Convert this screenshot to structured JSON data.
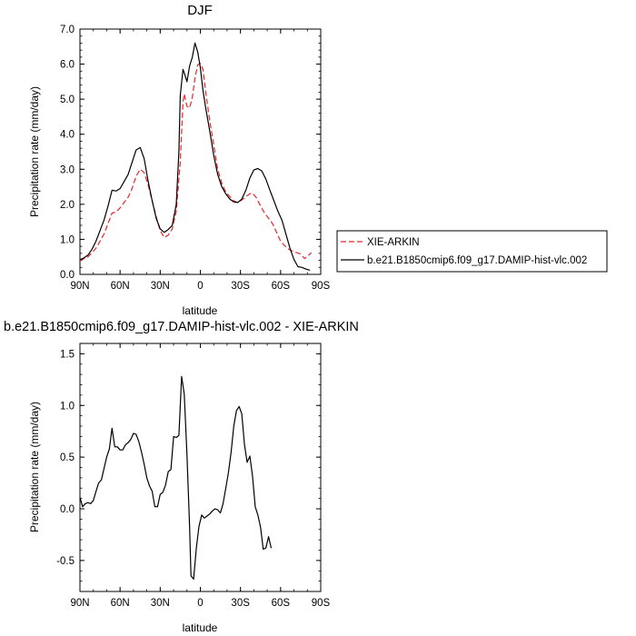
{
  "chart_data": [
    {
      "type": "line",
      "title": "DJF",
      "xlabel": "latitude",
      "ylabel": "Precipitation rate (mm/day)",
      "xlim": [
        90,
        -90
      ],
      "ylim": [
        0,
        7
      ],
      "x_ticks": [
        90,
        60,
        30,
        0,
        -30,
        -60,
        -90
      ],
      "x_tick_labels": [
        "90N",
        "60N",
        "30N",
        "0",
        "30S",
        "60S",
        "90S"
      ],
      "y_ticks": [
        0,
        1,
        2,
        3,
        4,
        5,
        6,
        7
      ],
      "y_tick_labels": [
        "0.0",
        "1.0",
        "2.0",
        "3.0",
        "4.0",
        "5.0",
        "6.0",
        "7.0"
      ],
      "legend_position": "right",
      "series": [
        {
          "name": "XIE-ARKIN",
          "color": "#e8262b",
          "dash": "dashed",
          "points": [
            [
              90,
              0.38
            ],
            [
              87,
              0.45
            ],
            [
              84,
              0.5
            ],
            [
              81,
              0.62
            ],
            [
              78,
              0.75
            ],
            [
              75,
              0.95
            ],
            [
              72,
              1.15
            ],
            [
              69,
              1.45
            ],
            [
              66,
              1.75
            ],
            [
              63,
              1.78
            ],
            [
              60,
              1.9
            ],
            [
              57,
              2.05
            ],
            [
              54,
              2.2
            ],
            [
              51,
              2.45
            ],
            [
              48,
              2.8
            ],
            [
              45,
              3.0
            ],
            [
              42,
              2.9
            ],
            [
              39,
              2.55
            ],
            [
              36,
              2.1
            ],
            [
              33,
              1.65
            ],
            [
              30,
              1.25
            ],
            [
              27,
              1.05
            ],
            [
              24,
              1.12
            ],
            [
              21,
              1.3
            ],
            [
              18,
              1.8
            ],
            [
              15,
              3.2
            ],
            [
              13,
              4.9
            ],
            [
              12,
              5.15
            ],
            [
              10,
              4.8
            ],
            [
              8,
              4.75
            ],
            [
              6,
              5.05
            ],
            [
              4,
              5.6
            ],
            [
              2,
              5.98
            ],
            [
              0,
              6.02
            ],
            [
              -2,
              5.85
            ],
            [
              -4,
              5.2
            ],
            [
              -7,
              4.4
            ],
            [
              -10,
              3.7
            ],
            [
              -13,
              3.0
            ],
            [
              -16,
              2.6
            ],
            [
              -19,
              2.35
            ],
            [
              -22,
              2.22
            ],
            [
              -25,
              2.1
            ],
            [
              -28,
              2.05
            ],
            [
              -31,
              2.12
            ],
            [
              -34,
              2.22
            ],
            [
              -37,
              2.3
            ],
            [
              -39,
              2.32
            ],
            [
              -42,
              2.18
            ],
            [
              -45,
              1.95
            ],
            [
              -48,
              1.75
            ],
            [
              -51,
              1.6
            ],
            [
              -54,
              1.45
            ],
            [
              -57,
              1.2
            ],
            [
              -60,
              0.95
            ],
            [
              -63,
              0.82
            ],
            [
              -66,
              0.72
            ],
            [
              -69,
              0.66
            ],
            [
              -72,
              0.62
            ],
            [
              -75,
              0.58
            ],
            [
              -78,
              0.45
            ],
            [
              -81,
              0.55
            ],
            [
              -83,
              0.62
            ]
          ]
        },
        {
          "name": "b.e21.B1850cmip6.f09_g17.DAMIP-hist-vlc.002",
          "color": "#000000",
          "dash": "solid",
          "points": [
            [
              90,
              0.42
            ],
            [
              87,
              0.47
            ],
            [
              84,
              0.55
            ],
            [
              81,
              0.72
            ],
            [
              78,
              0.95
            ],
            [
              75,
              1.25
            ],
            [
              72,
              1.55
            ],
            [
              69,
              1.95
            ],
            [
              66,
              2.4
            ],
            [
              63,
              2.38
            ],
            [
              60,
              2.45
            ],
            [
              57,
              2.65
            ],
            [
              54,
              2.85
            ],
            [
              51,
              3.2
            ],
            [
              48,
              3.55
            ],
            [
              45,
              3.62
            ],
            [
              42,
              3.3
            ],
            [
              39,
              2.65
            ],
            [
              36,
              2.1
            ],
            [
              33,
              1.6
            ],
            [
              30,
              1.3
            ],
            [
              27,
              1.2
            ],
            [
              24,
              1.28
            ],
            [
              21,
              1.4
            ],
            [
              18,
              2.0
            ],
            [
              16,
              3.5
            ],
            [
              15,
              5.1
            ],
            [
              13,
              5.85
            ],
            [
              12,
              5.75
            ],
            [
              10,
              5.5
            ],
            [
              8,
              5.95
            ],
            [
              6,
              6.2
            ],
            [
              4,
              6.6
            ],
            [
              2,
              6.35
            ],
            [
              0,
              5.9
            ],
            [
              -2,
              5.25
            ],
            [
              -4,
              4.75
            ],
            [
              -7,
              4.1
            ],
            [
              -10,
              3.4
            ],
            [
              -13,
              2.85
            ],
            [
              -16,
              2.5
            ],
            [
              -19,
              2.3
            ],
            [
              -22,
              2.15
            ],
            [
              -25,
              2.07
            ],
            [
              -28,
              2.05
            ],
            [
              -31,
              2.15
            ],
            [
              -34,
              2.4
            ],
            [
              -37,
              2.75
            ],
            [
              -40,
              2.98
            ],
            [
              -43,
              3.02
            ],
            [
              -46,
              2.95
            ],
            [
              -49,
              2.72
            ],
            [
              -52,
              2.4
            ],
            [
              -55,
              2.1
            ],
            [
              -58,
              1.8
            ],
            [
              -61,
              1.55
            ],
            [
              -64,
              1.15
            ],
            [
              -67,
              0.75
            ],
            [
              -70,
              0.42
            ],
            [
              -73,
              0.22
            ],
            [
              -76,
              0.2
            ],
            [
              -79,
              0.15
            ],
            [
              -82,
              0.12
            ]
          ]
        }
      ]
    },
    {
      "type": "line",
      "title": "b.e21.B1850cmip6.f09_g17.DAMIP-hist-vlc.002 - XIE-ARKIN",
      "xlabel": "latitude",
      "ylabel": "Precipitation rate (mm/day)",
      "xlim": [
        90,
        -90
      ],
      "ylim": [
        -0.8,
        1.6
      ],
      "x_ticks": [
        90,
        60,
        30,
        0,
        -30,
        -60,
        -90
      ],
      "x_tick_labels": [
        "90N",
        "60N",
        "30N",
        "0",
        "30S",
        "60S",
        "90S"
      ],
      "y_ticks": [
        -0.5,
        0,
        0.5,
        1.0,
        1.5
      ],
      "y_tick_labels": [
        "-0.5",
        "0.0",
        "0.5",
        "1.0",
        "1.5"
      ],
      "series": [
        {
          "name": "",
          "color": "#000000",
          "dash": "solid",
          "points": [
            [
              90,
              0.11
            ],
            [
              88,
              0.02
            ],
            [
              86,
              0.05
            ],
            [
              84,
              0.06
            ],
            [
              82,
              0.05
            ],
            [
              80,
              0.08
            ],
            [
              78,
              0.17
            ],
            [
              76,
              0.25
            ],
            [
              74,
              0.28
            ],
            [
              72,
              0.39
            ],
            [
              70,
              0.5
            ],
            [
              68,
              0.58
            ],
            [
              66,
              0.78
            ],
            [
              64,
              0.6
            ],
            [
              62,
              0.6
            ],
            [
              60,
              0.57
            ],
            [
              58,
              0.57
            ],
            [
              56,
              0.62
            ],
            [
              54,
              0.64
            ],
            [
              52,
              0.67
            ],
            [
              50,
              0.73
            ],
            [
              48,
              0.72
            ],
            [
              46,
              0.65
            ],
            [
              44,
              0.55
            ],
            [
              42,
              0.43
            ],
            [
              40,
              0.3
            ],
            [
              38,
              0.22
            ],
            [
              36,
              0.17
            ],
            [
              34,
              0.02
            ],
            [
              32,
              0.02
            ],
            [
              30,
              0.14
            ],
            [
              28,
              0.16
            ],
            [
              26,
              0.23
            ],
            [
              24,
              0.36
            ],
            [
              22,
              0.38
            ],
            [
              20,
              0.7
            ],
            [
              18,
              0.69
            ],
            [
              16,
              0.71
            ],
            [
              14,
              1.28
            ],
            [
              12,
              1.11
            ],
            [
              10,
              0.52
            ],
            [
              8,
              -0.18
            ],
            [
              7,
              -0.65
            ],
            [
              5,
              -0.68
            ],
            [
              3,
              -0.38
            ],
            [
              1,
              -0.17
            ],
            [
              -1,
              -0.06
            ],
            [
              -3,
              -0.09
            ],
            [
              -5,
              -0.07
            ],
            [
              -7,
              -0.05
            ],
            [
              -9,
              -0.02
            ],
            [
              -11,
              0.0
            ],
            [
              -13,
              -0.01
            ],
            [
              -15,
              -0.04
            ],
            [
              -17,
              0.05
            ],
            [
              -19,
              0.2
            ],
            [
              -21,
              0.35
            ],
            [
              -23,
              0.55
            ],
            [
              -25,
              0.8
            ],
            [
              -27,
              0.95
            ],
            [
              -29,
              0.99
            ],
            [
              -31,
              0.92
            ],
            [
              -33,
              0.62
            ],
            [
              -35,
              0.45
            ],
            [
              -37,
              0.51
            ],
            [
              -39,
              0.32
            ],
            [
              -41,
              0.02
            ],
            [
              -43,
              -0.06
            ],
            [
              -45,
              -0.18
            ],
            [
              -47,
              -0.39
            ],
            [
              -49,
              -0.38
            ],
            [
              -51,
              -0.27
            ],
            [
              -53,
              -0.38
            ]
          ]
        }
      ]
    }
  ]
}
